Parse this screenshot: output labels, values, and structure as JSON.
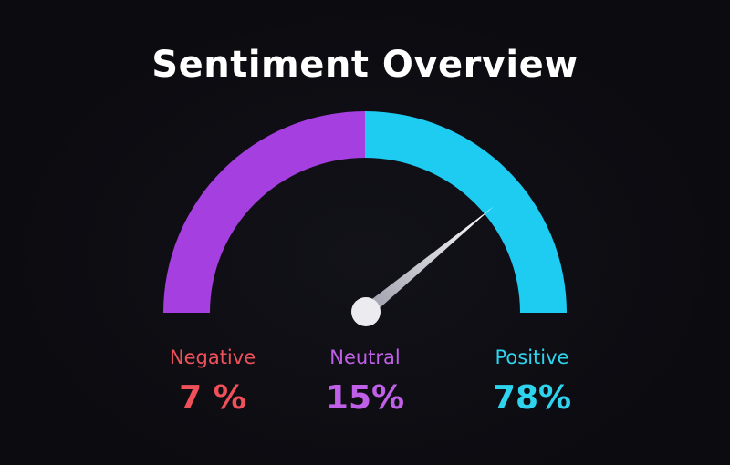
{
  "chart_data": {
    "type": "gauge",
    "title": "Sentiment Overview",
    "range": [
      0,
      100
    ],
    "needle_value": 78,
    "arc_segments": [
      {
        "color": "#A63FE0",
        "from": 0,
        "to": 50
      },
      {
        "color": "#1ECCF2",
        "from": 50,
        "to": 100
      }
    ],
    "categories": [
      "Negative",
      "Neutral",
      "Positive"
    ],
    "values": [
      "7 %",
      "15%",
      "78%"
    ],
    "colors": {
      "Negative": "#F0505A",
      "Neutral": "#C060E8",
      "Positive": "#2ED3EE"
    }
  }
}
